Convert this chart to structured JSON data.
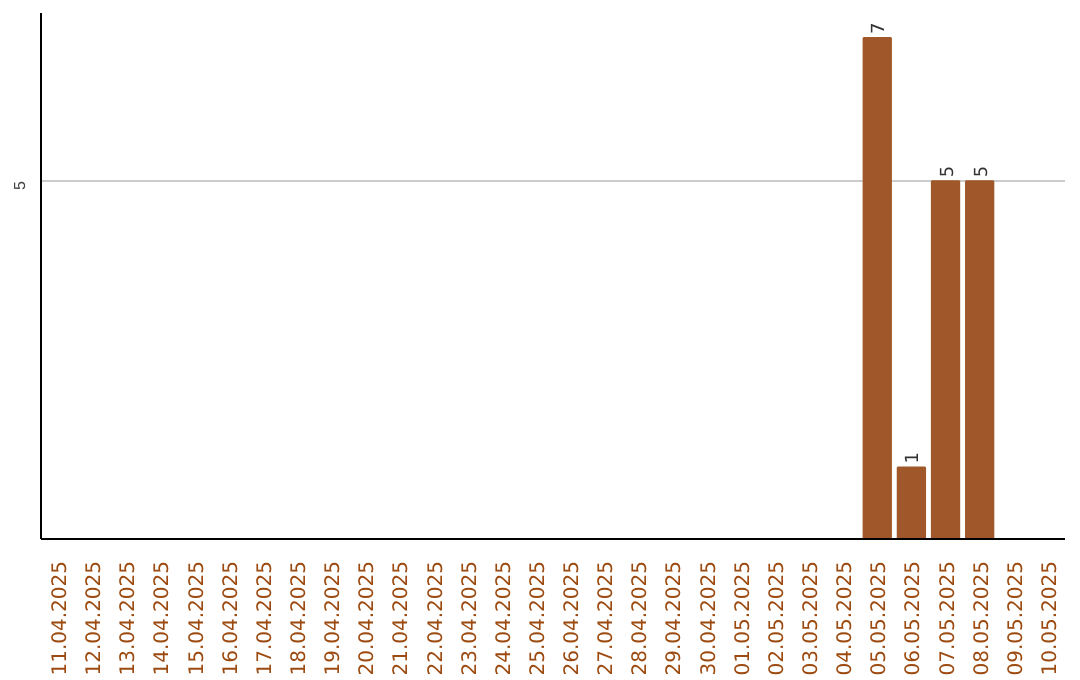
{
  "chart_data": {
    "type": "bar",
    "categories": [
      "11.04.2025",
      "12.04.2025",
      "13.04.2025",
      "14.04.2025",
      "15.04.2025",
      "16.04.2025",
      "17.04.2025",
      "18.04.2025",
      "19.04.2025",
      "20.04.2025",
      "21.04.2025",
      "22.04.2025",
      "23.04.2025",
      "24.04.2025",
      "25.04.2025",
      "26.04.2025",
      "27.04.2025",
      "28.04.2025",
      "29.04.2025",
      "30.04.2025",
      "01.05.2025",
      "02.05.2025",
      "03.05.2025",
      "04.05.2025",
      "05.05.2025",
      "06.05.2025",
      "07.05.2025",
      "08.05.2025",
      "09.05.2025",
      "10.05.2025"
    ],
    "values": [
      null,
      null,
      null,
      null,
      null,
      null,
      null,
      null,
      null,
      null,
      null,
      null,
      null,
      null,
      null,
      null,
      null,
      null,
      null,
      null,
      null,
      null,
      null,
      null,
      7,
      1,
      5,
      5,
      null,
      null
    ],
    "color": "#a0582a",
    "ylim": [
      0,
      7.35
    ],
    "yticks": [
      5
    ],
    "grid": "y",
    "data_labels": true
  }
}
